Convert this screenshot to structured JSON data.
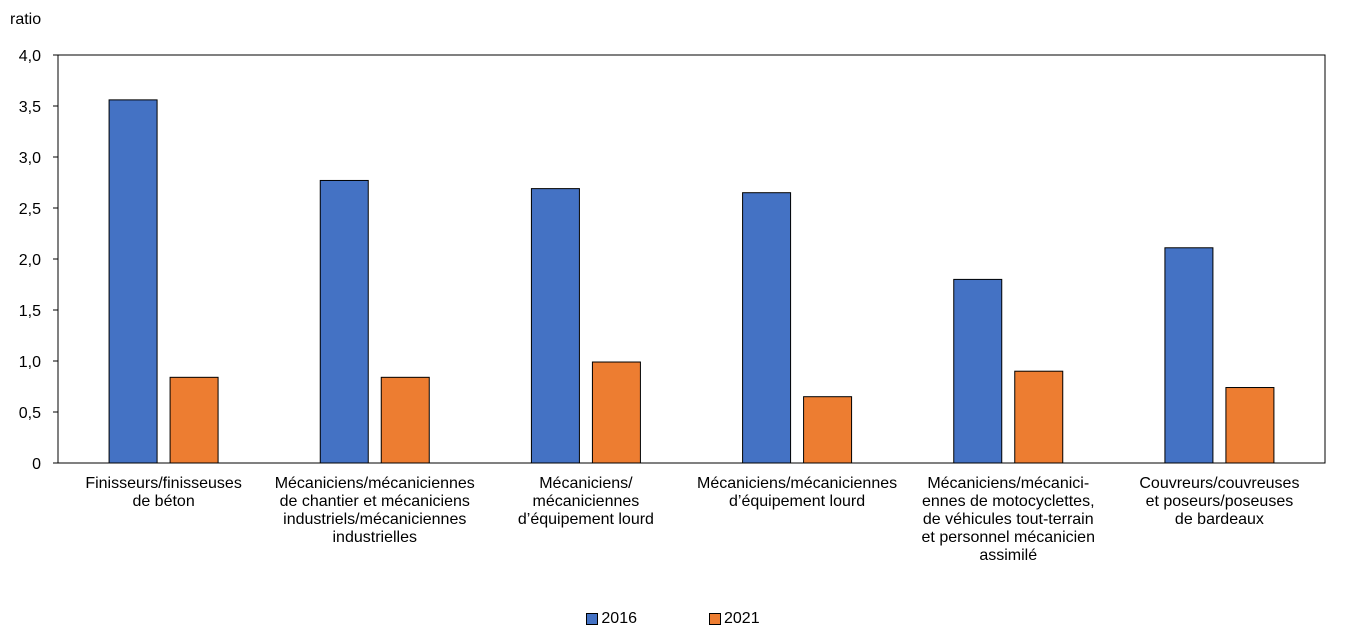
{
  "chart_data": {
    "type": "bar",
    "ylabel": "ratio",
    "ylim": [
      0,
      4
    ],
    "yticks": [
      "0",
      "0,5",
      "1,0",
      "1,5",
      "2,0",
      "2,5",
      "3,0",
      "3,5",
      "4,0"
    ],
    "grid": false,
    "legend_position": "bottom",
    "categories": [
      [
        "Finisseurs/finisseuses",
        "de béton"
      ],
      [
        "Mécaniciens/mécaniciennes",
        "de chantier et mécaniciens",
        "industriels/mécaniciennes",
        "industrielles"
      ],
      [
        "Mécaniciens/",
        "mécaniciennes",
        "d’équipement lourd"
      ],
      [
        "Mécaniciens/mécaniciennes",
        "d’équipement lourd"
      ],
      [
        "Mécaniciens/mécanici-",
        "ennes de motocyclettes,",
        "de véhicules tout-terrain",
        "et personnel mécanicien",
        "assimilé"
      ],
      [
        "Couvreurs/couvreuses",
        "et poseurs/poseuses",
        "de bardeaux"
      ]
    ],
    "series": [
      {
        "name": "2016",
        "color": "#4472c4",
        "values": [
          3.56,
          2.77,
          2.69,
          2.65,
          1.8,
          2.11
        ]
      },
      {
        "name": "2021",
        "color": "#ed7d31",
        "values": [
          0.84,
          0.84,
          0.99,
          0.65,
          0.9,
          0.74
        ]
      }
    ]
  }
}
